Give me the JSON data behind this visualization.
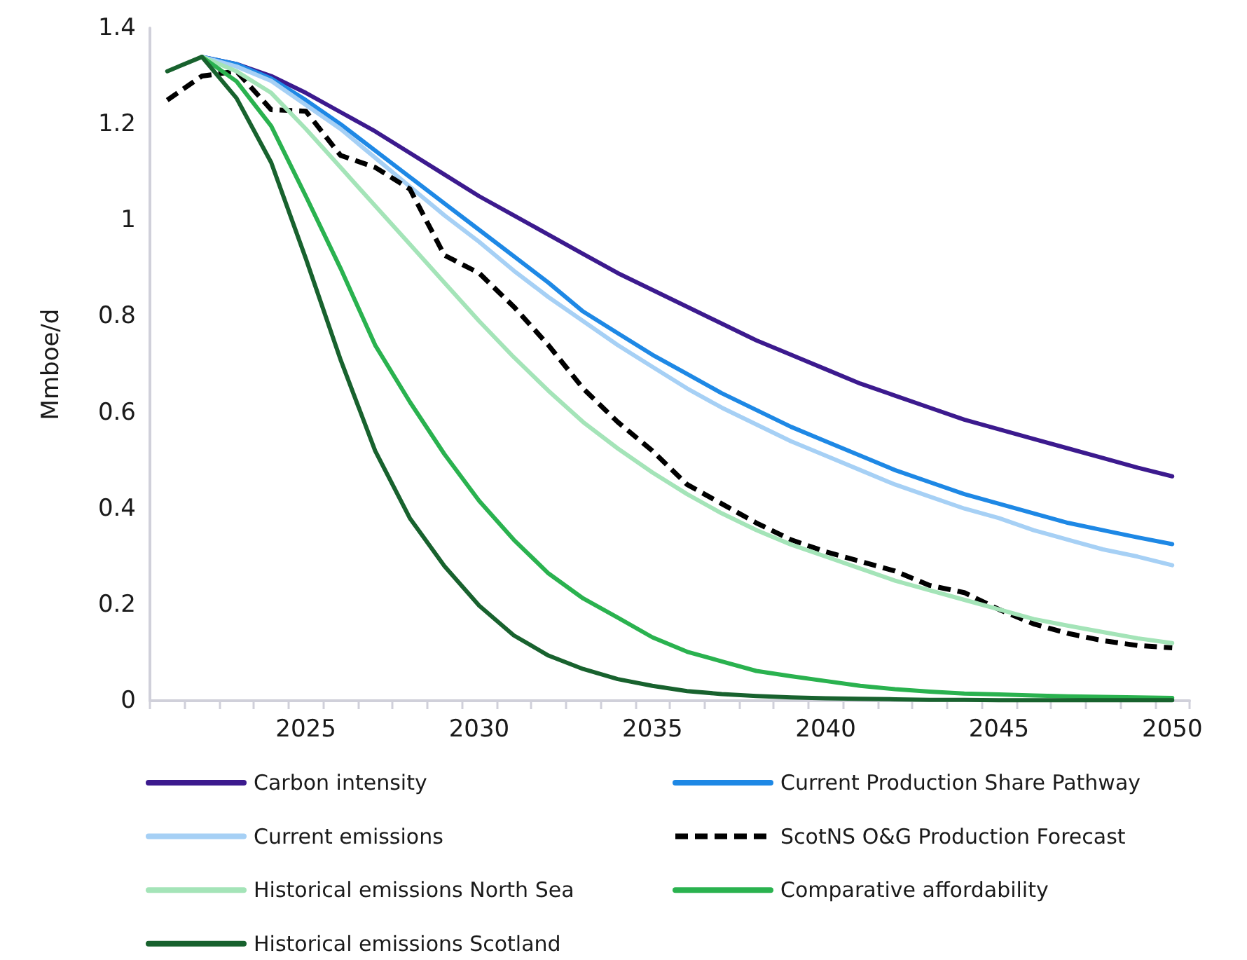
{
  "chart_data": {
    "type": "line",
    "ylabel": "Mmboe/d",
    "categories": [
      null,
      null,
      null,
      null,
      "2025",
      null,
      null,
      null,
      null,
      "2030",
      null,
      null,
      null,
      null,
      "2035",
      null,
      null,
      null,
      null,
      "2040",
      null,
      null,
      null,
      null,
      "2045",
      null,
      null,
      null,
      null,
      "2050"
    ],
    "ylim": [
      0,
      1.4
    ],
    "yticks": [
      0,
      0.2,
      0.4,
      0.6,
      0.8,
      1,
      1.2,
      1.4
    ],
    "grid": false,
    "legend": "bottom",
    "marker": "none",
    "line_style": "solid",
    "series": [
      {
        "name": "Carbon intensity",
        "color": "#3c1a8e",
        "values": [
          null,
          1.34,
          1.325,
          1.3,
          1.265,
          1.225,
          1.185,
          1.14,
          1.095,
          1.05,
          1.01,
          0.97,
          0.93,
          0.89,
          0.855,
          0.82,
          0.785,
          0.75,
          0.72,
          0.69,
          0.66,
          0.635,
          0.61,
          0.585,
          0.565,
          0.545,
          0.525,
          0.505,
          0.485,
          0.467
        ]
      },
      {
        "name": "Current Production Share Pathway",
        "color": "#1e88e5",
        "values": [
          null,
          1.34,
          1.325,
          1.295,
          1.25,
          1.2,
          1.145,
          1.09,
          1.035,
          0.98,
          0.925,
          0.87,
          0.81,
          0.765,
          0.72,
          0.68,
          0.64,
          0.605,
          0.57,
          0.54,
          0.51,
          0.48,
          0.455,
          0.43,
          0.41,
          0.39,
          0.37,
          0.355,
          0.34,
          0.326
        ]
      },
      {
        "name": "Current emissions",
        "color": "#a6d0f5",
        "values": [
          null,
          1.34,
          1.32,
          1.29,
          1.24,
          1.19,
          1.13,
          1.07,
          1.01,
          0.955,
          0.895,
          0.84,
          0.79,
          0.74,
          0.695,
          0.65,
          0.61,
          0.575,
          0.54,
          0.51,
          0.48,
          0.45,
          0.425,
          0.4,
          0.38,
          0.355,
          0.335,
          0.315,
          0.3,
          0.282
        ]
      },
      {
        "name": "ScotNS O&G Production Forecast",
        "color": "#000000",
        "line_style": "dashed",
        "values": [
          1.25,
          1.3,
          1.31,
          1.23,
          1.227,
          1.135,
          1.11,
          1.065,
          0.927,
          0.89,
          0.82,
          0.74,
          0.65,
          0.58,
          0.52,
          0.45,
          0.41,
          0.37,
          0.335,
          0.31,
          0.29,
          0.27,
          0.24,
          0.225,
          0.19,
          0.16,
          0.14,
          0.125,
          0.115,
          0.11
        ]
      },
      {
        "name": "Historical emissions North Sea",
        "color": "#a4e4b8",
        "values": [
          null,
          1.34,
          1.31,
          1.265,
          1.19,
          1.11,
          1.03,
          0.95,
          0.87,
          0.79,
          0.715,
          0.645,
          0.58,
          0.525,
          0.475,
          0.43,
          0.39,
          0.355,
          0.325,
          0.3,
          0.275,
          0.25,
          0.23,
          0.21,
          0.19,
          0.17,
          0.156,
          0.143,
          0.13,
          0.12
        ]
      },
      {
        "name": "Comparative affordability",
        "color": "#2ab24f",
        "values": [
          null,
          1.34,
          1.289,
          1.196,
          1.05,
          0.9,
          0.74,
          0.622,
          0.513,
          0.416,
          0.335,
          0.265,
          0.213,
          0.173,
          0.132,
          0.102,
          0.082,
          0.062,
          0.051,
          0.041,
          0.031,
          0.024,
          0.019,
          0.015,
          0.013,
          0.011,
          0.009,
          0.008,
          0.007,
          0.006
        ]
      },
      {
        "name": "Historical emissions Scotland",
        "color": "#18622e",
        "values": [
          1.31,
          1.34,
          1.254,
          1.12,
          0.92,
          0.71,
          0.52,
          0.38,
          0.28,
          0.198,
          0.136,
          0.094,
          0.066,
          0.045,
          0.031,
          0.02,
          0.014,
          0.01,
          0.007,
          0.005,
          0.004,
          0.003,
          0.002,
          0.002,
          0.001,
          0.001,
          0.001,
          0.001,
          0.001,
          0.001
        ]
      }
    ]
  }
}
